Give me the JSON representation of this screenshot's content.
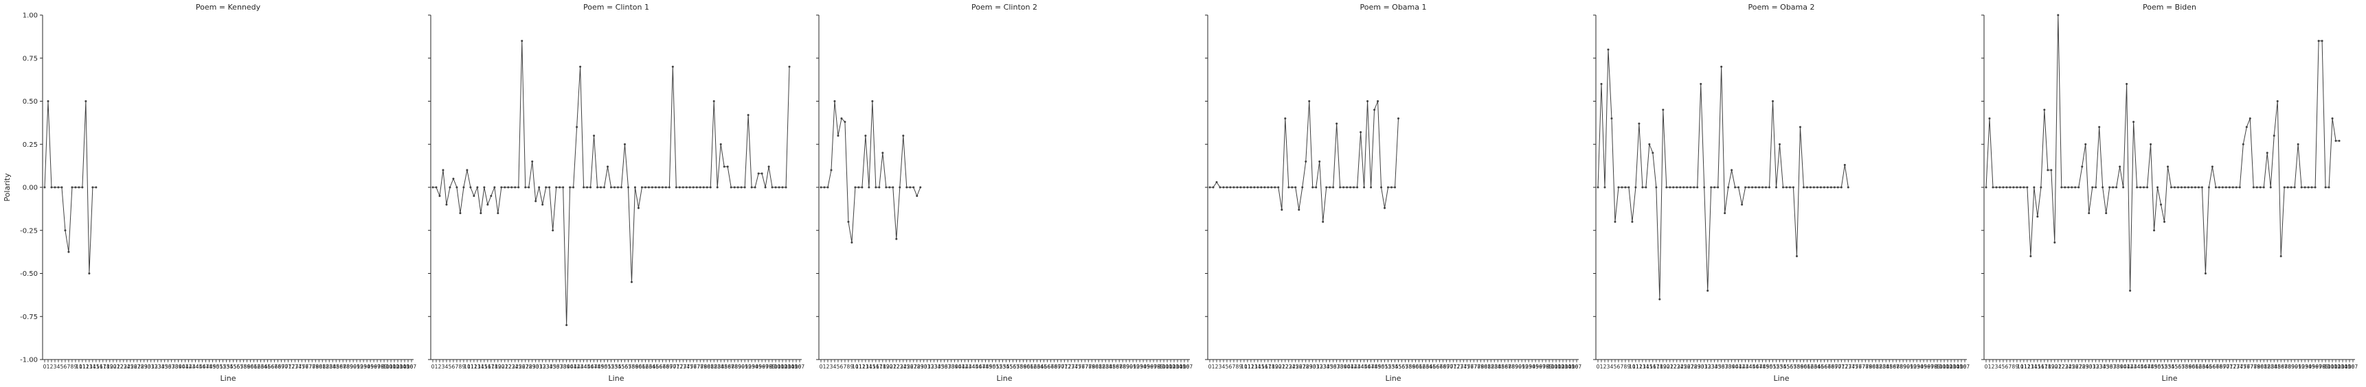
{
  "chart_data": {
    "type": "line",
    "facet_label": "Poem",
    "xlabel": "Line",
    "ylabel": "Polarity",
    "ylim": [
      -1.0,
      1.0
    ],
    "yticks": [
      "-1.00",
      "-0.75",
      "-0.50",
      "-0.25",
      "0.00",
      "0.25",
      "0.50",
      "0.75",
      "1.00"
    ],
    "x_tick_count": 108,
    "series_color": "#404040",
    "marker": "circle",
    "grid": false,
    "legend": "none",
    "panels": [
      {
        "title": "Poem = Kennedy",
        "y": [
          0,
          0.5,
          0,
          0,
          0,
          0,
          -0.25,
          -0.375,
          0,
          0,
          0,
          0,
          0.5,
          -0.5,
          0,
          0
        ]
      },
      {
        "title": "Poem = Clinton 1",
        "y": [
          0,
          0,
          -0.05,
          0.1,
          -0.1,
          0,
          0.05,
          0,
          -0.15,
          0,
          0.1,
          0,
          -0.05,
          0,
          -0.15,
          0,
          -0.1,
          -0.05,
          0,
          -0.15,
          0,
          0,
          0,
          0,
          0,
          0,
          0.85,
          0,
          0,
          0.15,
          -0.08,
          0,
          -0.1,
          0,
          0,
          -0.25,
          0,
          0,
          0,
          -0.8,
          0,
          0,
          0.35,
          0.7,
          0,
          0,
          0,
          0.3,
          0,
          0,
          0,
          0.12,
          0,
          0,
          0,
          0,
          0.25,
          0,
          -0.55,
          0,
          -0.12,
          0,
          0,
          0,
          0,
          0,
          0,
          0,
          0,
          0,
          0.7,
          0,
          0,
          0,
          0,
          0,
          0,
          0,
          0,
          0,
          0,
          0,
          0.5,
          0,
          0.25,
          0.12,
          0.12,
          0,
          0,
          0,
          0,
          0,
          0.42,
          0,
          0,
          0.08,
          0.08,
          0,
          0.12,
          0,
          0,
          0,
          0,
          0,
          0.7
        ]
      },
      {
        "title": "Poem = Clinton 2",
        "y": [
          0,
          0,
          0,
          0.1,
          0.5,
          0.3,
          0.4,
          0.38,
          -0.2,
          -0.32,
          0,
          0,
          0,
          0.3,
          0,
          0.5,
          0,
          0,
          0.2,
          0,
          0,
          0,
          -0.3,
          0,
          0.3,
          0,
          0,
          0,
          -0.05,
          0
        ]
      },
      {
        "title": "Poem = Obama 1",
        "y": [
          0,
          0,
          0.03,
          0,
          0,
          0,
          0,
          0,
          0,
          0,
          0,
          0,
          0,
          0,
          0,
          0,
          0,
          0,
          0,
          0,
          0,
          -0.13,
          0.4,
          0,
          0,
          0,
          -0.13,
          0,
          0.15,
          0.5,
          0,
          0,
          0.15,
          -0.2,
          0,
          0,
          0,
          0.37,
          0,
          0,
          0,
          0,
          0,
          0,
          0.32,
          0,
          0.5,
          0,
          0.45,
          0.5,
          0,
          -0.12,
          0,
          0,
          0,
          0.4
        ]
      },
      {
        "title": "Poem = Obama 2",
        "y": [
          0,
          0.6,
          0,
          0.8,
          0.4,
          -0.2,
          0,
          0,
          0,
          0,
          -0.2,
          0,
          0.37,
          0,
          0,
          0.25,
          0.2,
          0,
          -0.65,
          0.45,
          0,
          0,
          0,
          0,
          0,
          0,
          0,
          0,
          0,
          0,
          0.6,
          0,
          -0.6,
          0,
          0,
          0,
          0.7,
          -0.15,
          0,
          0.1,
          0,
          0,
          -0.1,
          0,
          0,
          0,
          0,
          0,
          0,
          0,
          0,
          0.5,
          0,
          0.25,
          0,
          0,
          0,
          0,
          -0.4,
          0.35,
          0,
          0,
          0,
          0,
          0,
          0,
          0,
          0,
          0,
          0,
          0,
          0,
          0.13,
          0
        ]
      },
      {
        "title": "Poem = Biden",
        "y": [
          0,
          0.4,
          0,
          0,
          0,
          0,
          0,
          0,
          0,
          0,
          0,
          0,
          0,
          -0.4,
          0,
          -0.17,
          0,
          0.45,
          0.1,
          0.1,
          -0.32,
          1.0,
          0,
          0,
          0,
          0,
          0,
          0,
          0.12,
          0.25,
          -0.15,
          0,
          0,
          0.35,
          0,
          -0.15,
          0,
          0,
          0,
          0.12,
          0,
          0.6,
          -0.6,
          0.38,
          0,
          0,
          0,
          0,
          0.25,
          -0.25,
          0,
          -0.1,
          -0.2,
          0.12,
          0,
          0,
          0,
          0,
          0,
          0,
          0,
          0,
          0,
          0,
          -0.5,
          0,
          0.12,
          0,
          0,
          0,
          0,
          0,
          0,
          0,
          0,
          0.25,
          0.35,
          0.4,
          0,
          0,
          0,
          0,
          0.2,
          0,
          0.3,
          0.5,
          -0.4,
          0,
          0,
          0,
          0,
          0.25,
          0,
          0,
          0,
          0,
          0,
          0.85,
          0.85,
          0,
          0,
          0.4,
          0.27,
          0.27
        ]
      }
    ]
  }
}
